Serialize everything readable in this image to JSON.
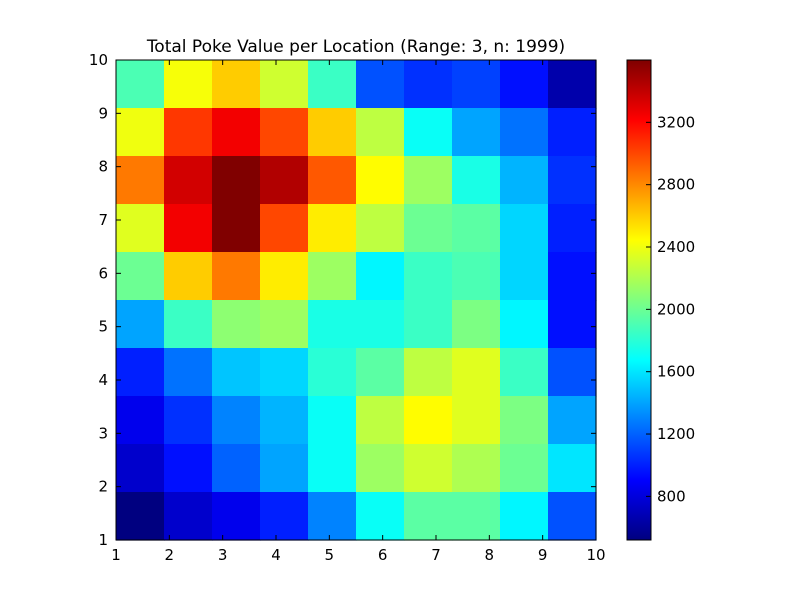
{
  "chart_data": {
    "type": "heatmap",
    "title": "Total Poke Value per Location (Range: 3, n: 1999)",
    "xlabel": "",
    "ylabel": "",
    "xlim": [
      1,
      10
    ],
    "ylim": [
      1,
      10
    ],
    "x_ticks": [
      "1",
      "2",
      "3",
      "4",
      "5",
      "6",
      "7",
      "8",
      "9",
      "10"
    ],
    "y_ticks": [
      "1",
      "2",
      "3",
      "4",
      "5",
      "6",
      "7",
      "8",
      "9",
      "10"
    ],
    "colormap": "jet",
    "color_range": [
      520,
      3600
    ],
    "colorbar_ticks": [
      "800",
      "1200",
      "1600",
      "2000",
      "2400",
      "2800",
      "3200"
    ],
    "colorbar_tick_values": [
      800,
      1200,
      1600,
      2000,
      2400,
      2800,
      3200
    ],
    "rows_top_to_bottom": [
      [
        1900,
        2420,
        2600,
        2300,
        1850,
        1150,
        1050,
        1100,
        950,
        650
      ],
      [
        2400,
        3050,
        3250,
        3000,
        2600,
        2250,
        1700,
        1400,
        1250,
        1000
      ],
      [
        2850,
        3350,
        3600,
        3450,
        2950,
        2450,
        2150,
        1750,
        1450,
        1050
      ],
      [
        2350,
        3250,
        3600,
        3000,
        2500,
        2250,
        2000,
        1950,
        1550,
        1000
      ],
      [
        2000,
        2600,
        2850,
        2500,
        2150,
        1650,
        1850,
        1900,
        1550,
        950
      ],
      [
        1400,
        1850,
        2100,
        2150,
        1750,
        1750,
        1850,
        2050,
        1650,
        950
      ],
      [
        1000,
        1250,
        1500,
        1550,
        1800,
        1950,
        2250,
        2350,
        1850,
        1150
      ],
      [
        850,
        1050,
        1300,
        1450,
        1700,
        2250,
        2450,
        2350,
        2050,
        1400
      ],
      [
        750,
        950,
        1200,
        1400,
        1700,
        2150,
        2300,
        2200,
        2000,
        1600
      ],
      [
        520,
        750,
        850,
        1000,
        1300,
        1700,
        1950,
        1950,
        1650,
        1150
      ]
    ]
  }
}
